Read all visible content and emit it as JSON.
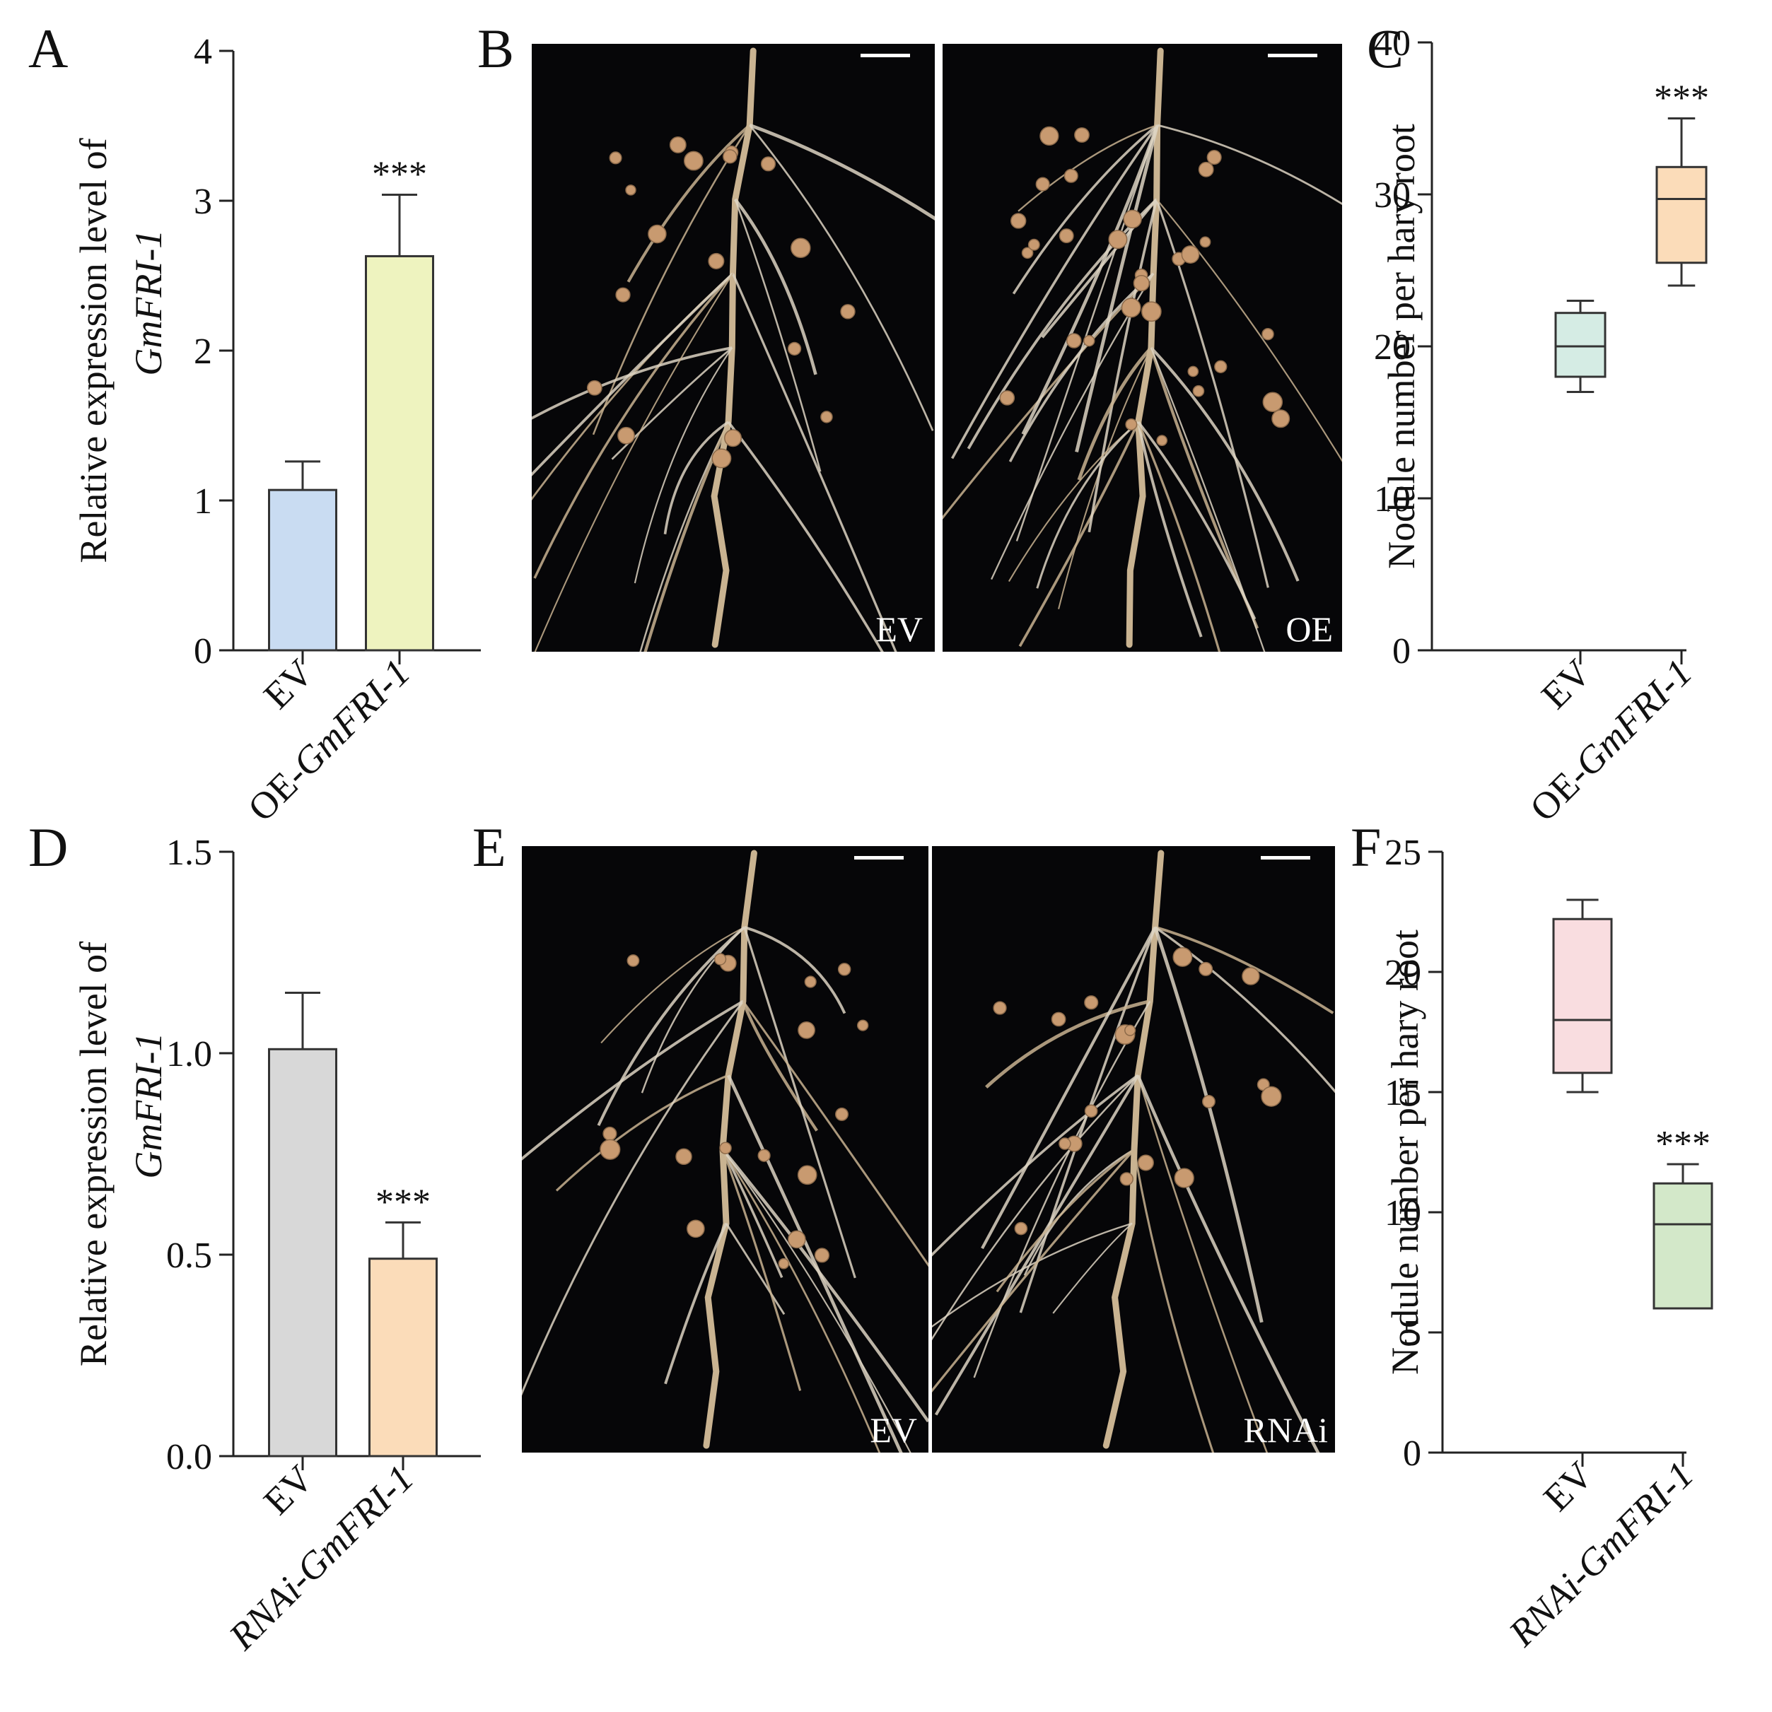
{
  "chart_data": [
    {
      "panel": "A",
      "type": "bar",
      "categories": [
        "EV",
        "OE-GmFRI-1"
      ],
      "category_parts": [
        [
          {
            "t": "EV",
            "i": false
          }
        ],
        [
          {
            "t": "OE-",
            "i": false
          },
          {
            "t": "GmFRI-1",
            "i": true
          }
        ]
      ],
      "values": [
        1.07,
        2.63
      ],
      "errors": [
        0.19,
        0.41
      ],
      "colors": [
        "#c9dcf2",
        "#eef3bf"
      ],
      "annotations": [
        "",
        "***"
      ],
      "ylabel_line1": "Relative expression level of",
      "ylabel_line2": "GmFRI-1",
      "ylim": [
        0,
        4
      ],
      "yticks": [
        "0",
        "1",
        "2",
        "3",
        "4"
      ],
      "ytick_values": [
        0,
        1,
        2,
        3,
        4
      ]
    },
    {
      "panel": "C",
      "type": "box",
      "categories": [
        "EV",
        "OE-GmFRI-1"
      ],
      "category_parts": [
        [
          {
            "t": "EV",
            "i": false
          }
        ],
        [
          {
            "t": "OE-",
            "i": false
          },
          {
            "t": "GmFRI-1",
            "i": true
          }
        ]
      ],
      "boxes": [
        {
          "min": 17,
          "q1": 18,
          "median": 20,
          "q3": 22.2,
          "max": 23
        },
        {
          "min": 24,
          "q1": 25.5,
          "median": 29.7,
          "q3": 31.8,
          "max": 35
        }
      ],
      "colors": [
        "#d5ece4",
        "#fbdcb9"
      ],
      "annotations": [
        "",
        "***"
      ],
      "ylabel": "Nodule number per hary root",
      "ylim": [
        0,
        40
      ],
      "yticks": [
        "0",
        "10",
        "20",
        "30",
        "40"
      ],
      "ytick_values": [
        0,
        10,
        20,
        30,
        40
      ]
    },
    {
      "panel": "D",
      "type": "bar",
      "categories": [
        "EV",
        "RNAi-GmFRI-1"
      ],
      "category_parts": [
        [
          {
            "t": "EV",
            "i": false
          }
        ],
        [
          {
            "t": "RNAi-GmFRI-1",
            "i": true
          }
        ]
      ],
      "values": [
        1.01,
        0.49
      ],
      "errors": [
        0.14,
        0.09
      ],
      "colors": [
        "#d8d8d8",
        "#fbdcb9"
      ],
      "annotations": [
        "",
        "***"
      ],
      "ylabel_line1": "Relative expression level of",
      "ylabel_line2": "GmFRI-1",
      "ylim": [
        0,
        1.5
      ],
      "yticks": [
        "0.0",
        "0.5",
        "1.0",
        "1.5"
      ],
      "ytick_values": [
        0,
        0.5,
        1.0,
        1.5
      ]
    },
    {
      "panel": "F",
      "type": "box",
      "categories": [
        "EV",
        "RNAi-GmFRI-1"
      ],
      "category_parts": [
        [
          {
            "t": "EV",
            "i": false
          }
        ],
        [
          {
            "t": "RNAi-GmFRI-1",
            "i": true
          }
        ]
      ],
      "boxes": [
        {
          "min": 15,
          "q1": 15.8,
          "median": 18,
          "q3": 22.2,
          "max": 23
        },
        {
          "min": 6,
          "q1": 6,
          "median": 9.5,
          "q3": 11.2,
          "max": 12
        }
      ],
      "colors": [
        "#f9dde0",
        "#d3e8c9"
      ],
      "annotations": [
        "",
        "***"
      ],
      "ylabel": "Nodule number per hary root",
      "ylim": [
        0,
        25
      ],
      "yticks": [
        "0",
        "5",
        "10",
        "15",
        "20",
        "25"
      ],
      "ytick_values": [
        0,
        5,
        10,
        15,
        20,
        25
      ]
    }
  ],
  "panel_letters": [
    "A",
    "B",
    "C",
    "D",
    "E",
    "F"
  ],
  "photos": {
    "B": {
      "left_label": "EV",
      "right_label": "OE"
    },
    "E": {
      "left_label": "EV",
      "right_label": "RNAi"
    }
  },
  "colors": {
    "photo_bg": "#060608",
    "root": "#c9b391",
    "root_light": "#ddd3c2",
    "nodule": "#c89a70"
  }
}
